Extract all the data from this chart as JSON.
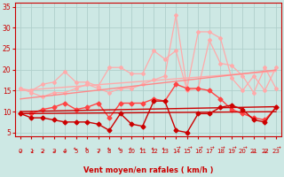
{
  "background_color": "#cde8e4",
  "grid_color": "#b0d0cc",
  "text_color": "#cc0000",
  "xlabel": "Vent moyen/en rafales ( km/h )",
  "x_ticks": [
    0,
    1,
    2,
    3,
    4,
    5,
    6,
    7,
    8,
    9,
    10,
    11,
    12,
    13,
    14,
    15,
    16,
    17,
    18,
    19,
    20,
    21,
    22,
    23
  ],
  "ylim": [
    4,
    36
  ],
  "xlim": [
    -0.5,
    23.5
  ],
  "yticks": [
    5,
    10,
    15,
    20,
    25,
    30,
    35
  ],
  "lines": [
    {
      "color": "#ffaaaa",
      "linewidth": 0.9,
      "marker": "D",
      "markersize": 2.0,
      "values": [
        15.5,
        14.5,
        13.5,
        14.5,
        14.5,
        15.5,
        16.5,
        15.5,
        14.5,
        15.5,
        15.5,
        16.5,
        17.5,
        18.5,
        33.0,
        15.5,
        29.0,
        29.0,
        27.5,
        18.0,
        15.0,
        18.5,
        15.0,
        20.5
      ]
    },
    {
      "color": "#ffaaaa",
      "linewidth": 0.9,
      "marker": "D",
      "markersize": 2.0,
      "values": [
        15.5,
        15.0,
        16.5,
        17.0,
        19.5,
        17.0,
        17.0,
        16.0,
        20.5,
        20.5,
        19.0,
        19.0,
        24.5,
        22.5,
        24.5,
        15.0,
        15.5,
        27.0,
        21.5,
        21.0,
        18.5,
        14.5,
        20.5,
        15.5
      ]
    },
    {
      "color": "#ffaaaa",
      "linewidth": 1.0,
      "marker": null,
      "markersize": 0,
      "values": [
        15.0,
        15.2,
        15.4,
        15.6,
        15.8,
        16.0,
        16.2,
        16.4,
        16.6,
        16.8,
        17.0,
        17.2,
        17.4,
        17.6,
        17.8,
        18.0,
        18.2,
        18.4,
        18.6,
        18.8,
        19.0,
        19.2,
        19.4,
        19.6
      ]
    },
    {
      "color": "#ff8888",
      "linewidth": 1.0,
      "marker": null,
      "markersize": 0,
      "values": [
        13.0,
        13.3,
        13.6,
        13.9,
        14.2,
        14.5,
        14.8,
        15.1,
        15.4,
        15.7,
        16.0,
        16.3,
        16.6,
        16.9,
        17.2,
        17.5,
        17.8,
        18.1,
        18.4,
        18.7,
        19.0,
        19.3,
        19.6,
        19.9
      ]
    },
    {
      "color": "#ff4444",
      "linewidth": 1.0,
      "marker": "D",
      "markersize": 2.5,
      "values": [
        9.5,
        9.5,
        10.5,
        11.0,
        12.0,
        10.5,
        11.0,
        12.0,
        8.5,
        12.0,
        12.0,
        12.0,
        13.0,
        12.5,
        16.5,
        15.5,
        15.5,
        15.0,
        13.0,
        10.5,
        9.5,
        8.5,
        8.0,
        11.0
      ]
    },
    {
      "color": "#cc0000",
      "linewidth": 1.0,
      "marker": null,
      "markersize": 0,
      "values": [
        10.0,
        10.05,
        10.1,
        10.15,
        10.2,
        10.25,
        10.3,
        10.35,
        10.4,
        10.45,
        10.5,
        10.55,
        10.6,
        10.65,
        10.7,
        10.75,
        10.8,
        10.85,
        10.9,
        10.95,
        11.0,
        11.05,
        11.1,
        11.15
      ]
    },
    {
      "color": "#cc0000",
      "linewidth": 1.0,
      "marker": null,
      "markersize": 0,
      "values": [
        9.5,
        9.52,
        9.54,
        9.56,
        9.58,
        9.6,
        9.62,
        9.64,
        9.66,
        9.68,
        9.7,
        9.72,
        9.74,
        9.76,
        9.78,
        9.8,
        9.82,
        9.84,
        9.86,
        9.88,
        9.9,
        9.92,
        9.94,
        9.96
      ]
    },
    {
      "color": "#cc0000",
      "linewidth": 1.0,
      "marker": "D",
      "markersize": 2.5,
      "values": [
        9.5,
        8.5,
        8.5,
        8.0,
        7.5,
        7.5,
        7.5,
        7.0,
        5.5,
        9.5,
        7.0,
        6.5,
        12.5,
        12.5,
        5.5,
        5.0,
        9.5,
        9.5,
        11.0,
        11.5,
        10.5,
        8.0,
        7.5,
        11.0
      ]
    }
  ],
  "arrow_angles": [
    225,
    225,
    225,
    225,
    225,
    315,
    315,
    225,
    315,
    315,
    315,
    315,
    315,
    315,
    90,
    90,
    90,
    90,
    90,
    90,
    90,
    225,
    225,
    90
  ]
}
